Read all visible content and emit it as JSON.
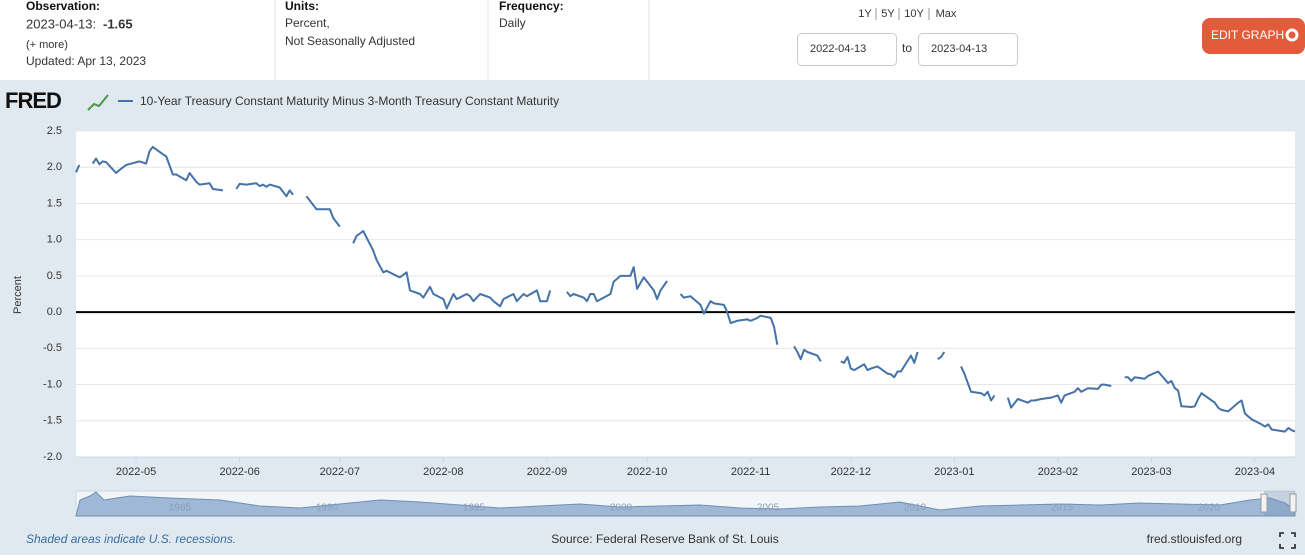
{
  "header": {
    "observation": {
      "label": "Observation:",
      "date": "2023-04-13:",
      "value": -1.65,
      "more": "(+ more)",
      "updated": "Updated: Apr 13, 2023"
    },
    "units": {
      "label": "Units:",
      "lines": [
        "Percent,",
        "Not Seasonally Adjusted"
      ]
    },
    "frequency": {
      "label": "Frequency:",
      "value": "Daily"
    },
    "ranges": [
      "1Y",
      "5Y",
      "10Y",
      "Max"
    ],
    "date_from": "2022-04-13",
    "date_sep": "to",
    "date_to": "2023-04-13",
    "edit_button": "EDIT GRAPH"
  },
  "logo": "FRED",
  "chart_data": {
    "type": "line",
    "ylabel": "Percent",
    "xlim": [
      "2022-04-13",
      "2023-04-13"
    ],
    "xticks": [
      "2022-05",
      "2022-06",
      "2022-07",
      "2022-08",
      "2022-09",
      "2022-10",
      "2022-11",
      "2022-12",
      "2023-01",
      "2023-02",
      "2023-03",
      "2023-04"
    ],
    "ylim": [
      -2,
      2.5
    ],
    "yticks": [
      {
        "value": -2,
        "label": "-2.0"
      },
      -1.5,
      {
        "value": -1,
        "label": "-1.0"
      },
      -0.5,
      {
        "value": 0,
        "label": "0.0"
      },
      0.5,
      {
        "value": 1,
        "label": "1.0"
      },
      1.5,
      {
        "value": 2,
        "label": "2.0"
      },
      2.5
    ],
    "grid": true,
    "zero_line": true,
    "x": [
      "2022-04-13",
      "2022-04-14",
      "2022-04-15",
      "2022-04-18",
      "2022-04-19",
      "2022-04-20",
      "2022-04-21",
      "2022-04-22",
      "2022-04-25",
      "2022-04-26",
      "2022-04-28",
      "2022-05-02",
      "2022-05-04",
      "2022-05-05",
      "2022-05-06",
      "2022-05-09",
      "2022-05-10",
      "2022-05-12",
      "2022-05-13",
      "2022-05-16",
      "2022-05-17",
      "2022-05-19",
      "2022-05-20",
      "2022-05-23",
      "2022-05-24",
      "2022-05-27",
      "2022-05-30",
      "2022-05-31",
      "2022-06-01",
      "2022-06-03",
      "2022-06-06",
      "2022-06-07",
      "2022-06-08",
      "2022-06-09",
      "2022-06-10",
      "2022-06-13",
      "2022-06-15",
      "2022-06-16",
      "2022-06-17",
      "2022-06-20",
      "2022-06-21",
      "2022-06-23",
      "2022-06-24",
      "2022-06-28",
      "2022-06-29",
      "2022-07-01",
      "2022-07-04",
      "2022-07-05",
      "2022-07-06",
      "2022-07-08",
      "2022-07-11",
      "2022-07-12",
      "2022-07-14",
      "2022-07-15",
      "2022-07-18",
      "2022-07-19",
      "2022-07-21",
      "2022-07-22",
      "2022-07-25",
      "2022-07-26",
      "2022-07-28",
      "2022-07-29",
      "2022-08-01",
      "2022-08-02",
      "2022-08-04",
      "2022-08-05",
      "2022-08-08",
      "2022-08-09",
      "2022-08-10",
      "2022-08-12",
      "2022-08-15",
      "2022-08-16",
      "2022-08-18",
      "2022-08-19",
      "2022-08-22",
      "2022-08-23",
      "2022-08-25",
      "2022-08-26",
      "2022-08-29",
      "2022-08-30",
      "2022-08-31",
      "2022-09-01",
      "2022-09-02",
      "2022-09-05",
      "2022-09-07",
      "2022-09-08",
      "2022-09-09",
      "2022-09-12",
      "2022-09-13",
      "2022-09-14",
      "2022-09-15",
      "2022-09-16",
      "2022-09-20",
      "2022-09-21",
      "2022-09-23",
      "2022-09-26",
      "2022-09-27",
      "2022-09-28",
      "2022-09-30",
      "2022-10-03",
      "2022-10-04",
      "2022-10-05",
      "2022-10-07",
      "2022-10-10",
      "2022-10-11",
      "2022-10-12",
      "2022-10-14",
      "2022-10-17",
      "2022-10-18",
      "2022-10-20",
      "2022-10-21",
      "2022-10-24",
      "2022-10-25",
      "2022-10-26",
      "2022-10-28",
      "2022-10-31",
      "2022-11-01",
      "2022-11-03",
      "2022-11-04",
      "2022-11-07",
      "2022-11-08",
      "2022-11-09",
      "2022-11-11",
      "2022-11-14",
      "2022-11-15",
      "2022-11-16",
      "2022-11-17",
      "2022-11-18",
      "2022-11-21",
      "2022-11-22",
      "2022-11-24",
      "2022-11-28",
      "2022-11-29",
      "2022-11-30",
      "2022-12-01",
      "2022-12-02",
      "2022-12-05",
      "2022-12-06",
      "2022-12-07",
      "2022-12-09",
      "2022-12-12",
      "2022-12-13",
      "2022-12-14",
      "2022-12-15",
      "2022-12-16",
      "2022-12-19",
      "2022-12-20",
      "2022-12-21",
      "2022-12-23",
      "2022-12-27",
      "2022-12-28",
      "2022-12-29",
      "2022-12-30",
      "2023-01-03",
      "2023-01-04",
      "2023-01-06",
      "2023-01-09",
      "2023-01-10",
      "2023-01-11",
      "2023-01-12",
      "2023-01-13",
      "2023-01-16",
      "2023-01-17",
      "2023-01-18",
      "2023-01-20",
      "2023-01-23",
      "2023-01-24",
      "2023-01-25",
      "2023-01-27",
      "2023-01-30",
      "2023-02-01",
      "2023-02-02",
      "2023-02-03",
      "2023-02-06",
      "2023-02-07",
      "2023-02-08",
      "2023-02-10",
      "2023-02-13",
      "2023-02-14",
      "2023-02-15",
      "2023-02-17",
      "2023-02-20",
      "2023-02-21",
      "2023-02-22",
      "2023-02-23",
      "2023-02-24",
      "2023-02-27",
      "2023-02-28",
      "2023-03-03",
      "2023-03-06",
      "2023-03-07",
      "2023-03-08",
      "2023-03-09",
      "2023-03-10",
      "2023-03-13",
      "2023-03-14",
      "2023-03-15",
      "2023-03-16",
      "2023-03-20",
      "2023-03-21",
      "2023-03-22",
      "2023-03-23",
      "2023-03-24",
      "2023-03-27",
      "2023-03-28",
      "2023-03-29",
      "2023-03-30",
      "2023-03-31",
      "2023-04-03",
      "2023-04-04",
      "2023-04-05",
      "2023-04-06",
      "2023-04-10",
      "2023-04-11",
      "2023-04-12",
      "2023-04-13"
    ],
    "series": [
      {
        "name": "10-Year Treasury Constant Maturity Minus 3-Month Treasury Constant Maturity",
        "color": "#4572a7",
        "values": [
          1.93,
          2.03,
          null,
          2.05,
          2.12,
          2.04,
          2.08,
          2.07,
          1.92,
          1.96,
          2.03,
          2.08,
          2.05,
          2.22,
          2.28,
          2.18,
          2.15,
          1.9,
          1.9,
          1.82,
          1.92,
          1.8,
          1.76,
          1.78,
          1.7,
          1.68,
          null,
          1.7,
          1.77,
          1.76,
          1.78,
          1.74,
          1.76,
          1.73,
          1.76,
          1.72,
          1.6,
          1.68,
          1.62,
          null,
          1.6,
          1.48,
          1.42,
          1.42,
          1.3,
          1.18,
          null,
          0.95,
          1.05,
          1.12,
          0.85,
          0.72,
          0.55,
          0.57,
          0.5,
          0.48,
          0.55,
          0.3,
          0.25,
          0.2,
          0.35,
          0.25,
          0.18,
          0.05,
          0.25,
          0.18,
          0.25,
          0.22,
          0.15,
          0.25,
          0.2,
          0.15,
          0.08,
          0.18,
          0.25,
          0.15,
          0.25,
          0.22,
          0.3,
          0.15,
          0.15,
          0.15,
          0.3,
          null,
          0.28,
          0.22,
          0.25,
          0.2,
          0.15,
          0.25,
          0.25,
          0.15,
          0.25,
          0.42,
          0.5,
          0.5,
          0.62,
          0.32,
          0.48,
          0.3,
          0.18,
          0.3,
          0.43,
          null,
          0.25,
          0.2,
          0.22,
          0.1,
          -0.02,
          0.15,
          0.12,
          0.1,
          0,
          -0.15,
          -0.12,
          -0.1,
          -0.12,
          -0.08,
          -0.05,
          -0.08,
          -0.2,
          -0.45,
          null,
          -0.47,
          -0.55,
          -0.65,
          -0.52,
          -0.55,
          -0.6,
          -0.68,
          null,
          -0.68,
          -0.7,
          -0.62,
          -0.78,
          -0.8,
          -0.72,
          -0.8,
          -0.78,
          -0.75,
          -0.85,
          -0.86,
          -0.9,
          -0.82,
          -0.82,
          -0.6,
          -0.7,
          -0.55,
          null,
          -0.65,
          -0.62,
          -0.55,
          null,
          -0.75,
          -0.85,
          -1.1,
          -1.12,
          -1.15,
          -1.1,
          -1.22,
          -1.15,
          null,
          -1.18,
          -1.32,
          -1.2,
          -1.25,
          -1.22,
          -1.22,
          -1.2,
          -1.18,
          -1.15,
          -1.25,
          -1.15,
          -1.1,
          -1.05,
          -1.1,
          -1.05,
          -1.06,
          -1,
          -1,
          -1.02,
          null,
          -0.9,
          -0.9,
          -0.95,
          -0.9,
          -0.92,
          -0.88,
          -0.82,
          -0.98,
          -0.95,
          -1.05,
          -1.08,
          -1.3,
          -1.31,
          -1.3,
          -1.2,
          -1.12,
          -1.25,
          -1.32,
          -1.35,
          -1.36,
          -1.37,
          -1.25,
          -1.22,
          -1.4,
          -1.44,
          -1.48,
          -1.55,
          -1.58,
          -1.55,
          -1.62,
          -1.65,
          -1.6,
          -1.63,
          -1.65
        ]
      }
    ]
  },
  "navigator": {
    "years": [
      1985,
      1990,
      1995,
      2000,
      2005,
      2010,
      2015,
      2020
    ]
  },
  "footer": {
    "recessions": "Shaded areas indicate U.S. recessions.",
    "source": "Source: Federal Reserve Bank of St. Louis",
    "site": "fred.stlouisfed.org"
  }
}
